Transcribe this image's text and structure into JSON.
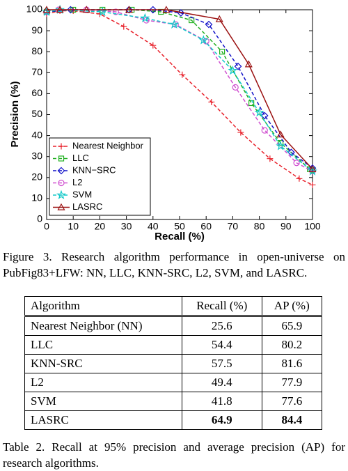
{
  "chart_data": {
    "type": "line",
    "xlabel": "Recall (%)",
    "ylabel": "Precision (%)",
    "xlim": [
      0,
      100
    ],
    "ylim": [
      0,
      100
    ],
    "xticks": [
      0,
      10,
      20,
      30,
      40,
      50,
      60,
      70,
      80,
      90,
      100
    ],
    "yticks": [
      0,
      10,
      20,
      30,
      40,
      50,
      60,
      70,
      80,
      90,
      100
    ],
    "grid": false,
    "legend": "lower left",
    "series": [
      {
        "name": "Nearest Neighbor",
        "color": "#e8202a",
        "marker": "plus",
        "linestyle": "dashed",
        "x": [
          0,
          5,
          10,
          20,
          29,
          40,
          51,
          62,
          73,
          84,
          95,
          100
        ],
        "values": [
          98,
          99.5,
          99.5,
          98,
          92,
          83,
          69,
          56,
          41.5,
          29,
          19.5,
          16.5
        ]
      },
      {
        "name": "LLC",
        "color": "#22b022",
        "marker": "square",
        "linestyle": "dashed",
        "x": [
          0,
          10,
          21,
          32,
          43,
          54.5,
          66,
          77,
          88,
          99,
          100
        ],
        "values": [
          99,
          100,
          100,
          100,
          99,
          95,
          80,
          55.5,
          36.5,
          24,
          23.5
        ]
      },
      {
        "name": "KNN−SRC",
        "color": "#1010c8",
        "marker": "diamond",
        "linestyle": "dashed",
        "x": [
          0,
          9,
          31,
          40,
          50.5,
          61,
          72,
          82,
          92,
          100
        ],
        "values": [
          99,
          100,
          100,
          100,
          98.5,
          93,
          73,
          49.5,
          32,
          24.5
        ]
      },
      {
        "name": "L2",
        "color": "#d050d0",
        "marker": "circle",
        "linestyle": "dashed",
        "x": [
          0,
          4.5,
          15,
          26,
          37.5,
          48.5,
          60,
          71,
          82,
          94,
          100
        ],
        "values": [
          99,
          100,
          100,
          99,
          95,
          93,
          85,
          63,
          42.5,
          27,
          23
        ]
      },
      {
        "name": "SVM",
        "color": "#10c8c8",
        "marker": "star",
        "linestyle": "dashed",
        "x": [
          0,
          5,
          21,
          37,
          48,
          59,
          70,
          80,
          88,
          100
        ],
        "values": [
          99,
          100,
          99,
          96,
          93,
          85.5,
          71,
          51,
          35,
          23
        ]
      },
      {
        "name": "LASRC",
        "color": "#9a1010",
        "marker": "triangle",
        "linestyle": "solid",
        "x": [
          0,
          5,
          15,
          31,
          45,
          65,
          76,
          88,
          100
        ],
        "values": [
          100,
          100,
          100,
          100,
          100,
          95.5,
          74,
          40.5,
          24
        ]
      }
    ]
  },
  "figure_caption": "Figure 3. Research algorithm performance in open-universe on PubFig83+LFW: NN, LLC, KNN-SRC, L2, SVM, and LASRC.",
  "table": {
    "header": [
      "Algorithm",
      "Recall (%)",
      "AP (%)"
    ],
    "rows": [
      [
        "Nearest Neighbor (NN)",
        25.6,
        65.9
      ],
      [
        "LLC",
        54.4,
        80.2
      ],
      [
        "KNN-SRC",
        57.5,
        81.6
      ],
      [
        "L2",
        49.4,
        77.9
      ],
      [
        "SVM",
        41.8,
        77.6
      ],
      [
        "LASRC",
        64.9,
        84.4
      ]
    ]
  },
  "table_caption": "Table 2. Recall at 95% precision and average precision (AP) for research algorithms."
}
